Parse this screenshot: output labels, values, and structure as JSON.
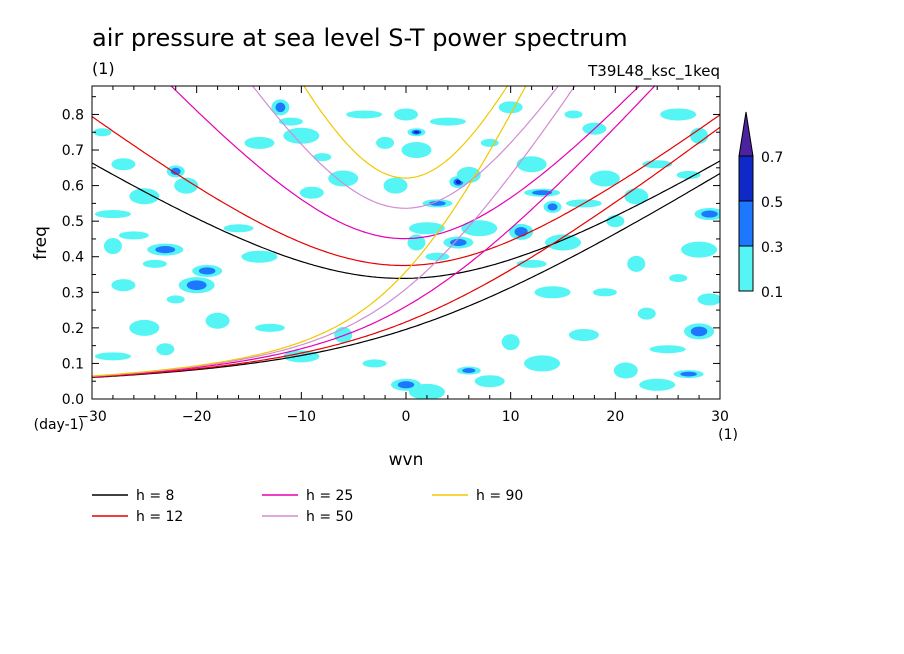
{
  "chart_data": {
    "type": "contour",
    "title": "air pressure at sea level S-T power spectrum",
    "units_label": "(1)",
    "experiment_label": "T39L48_ksc_1keq",
    "xlabel": "wvn",
    "ylabel": "freq",
    "x_unit_label": "(1)",
    "y_unit_label": "(day-1)",
    "xlim": [
      -30,
      30
    ],
    "ylim": [
      0,
      0.88
    ],
    "xticks": [
      -30,
      -20,
      -10,
      0,
      10,
      20,
      30
    ],
    "yticks": [
      0.0,
      0.1,
      0.2,
      0.3,
      0.4,
      0.5,
      0.6,
      0.7,
      0.8
    ],
    "colorbar": {
      "levels": [
        "0.1",
        "0.3",
        "0.5",
        "0.7"
      ],
      "colors": [
        "#55f5f5",
        "#1e78ff",
        "#0f28c8",
        "#4b23a0"
      ]
    },
    "contour_patches": [
      {
        "x": -29,
        "y": 0.75,
        "level": 0
      },
      {
        "x": -27,
        "y": 0.66,
        "level": 0
      },
      {
        "x": -25,
        "y": 0.57,
        "level": 0
      },
      {
        "x": -28,
        "y": 0.52,
        "level": 0
      },
      {
        "x": -22,
        "y": 0.64,
        "level": 1
      },
      {
        "x": -21,
        "y": 0.6,
        "level": 0
      },
      {
        "x": -26,
        "y": 0.46,
        "level": 0
      },
      {
        "x": -23,
        "y": 0.42,
        "level": 1
      },
      {
        "x": -28,
        "y": 0.43,
        "level": 0
      },
      {
        "x": -24,
        "y": 0.38,
        "level": 0
      },
      {
        "x": -19,
        "y": 0.36,
        "level": 1
      },
      {
        "x": -20,
        "y": 0.32,
        "level": 1
      },
      {
        "x": -22,
        "y": 0.28,
        "level": 0
      },
      {
        "x": -27,
        "y": 0.32,
        "level": 0
      },
      {
        "x": -25,
        "y": 0.2,
        "level": 0
      },
      {
        "x": -28,
        "y": 0.12,
        "level": 0
      },
      {
        "x": -23,
        "y": 0.14,
        "level": 0
      },
      {
        "x": -18,
        "y": 0.22,
        "level": 0
      },
      {
        "x": -16,
        "y": 0.48,
        "level": 0
      },
      {
        "x": -14,
        "y": 0.4,
        "level": 0
      },
      {
        "x": -12,
        "y": 0.82,
        "level": 1
      },
      {
        "x": -11,
        "y": 0.78,
        "level": 0
      },
      {
        "x": -14,
        "y": 0.72,
        "level": 0
      },
      {
        "x": -10,
        "y": 0.74,
        "level": 0
      },
      {
        "x": -8,
        "y": 0.68,
        "level": 0
      },
      {
        "x": -9,
        "y": 0.58,
        "level": 0
      },
      {
        "x": -6,
        "y": 0.62,
        "level": 0
      },
      {
        "x": -4,
        "y": 0.8,
        "level": 0
      },
      {
        "x": -2,
        "y": 0.72,
        "level": 0
      },
      {
        "x": -1,
        "y": 0.6,
        "level": 0
      },
      {
        "x": -13,
        "y": 0.2,
        "level": 0
      },
      {
        "x": -10,
        "y": 0.12,
        "level": 0
      },
      {
        "x": -6,
        "y": 0.18,
        "level": 0
      },
      {
        "x": -3,
        "y": 0.1,
        "level": 0
      },
      {
        "x": 0,
        "y": 0.04,
        "level": 1
      },
      {
        "x": 2,
        "y": 0.02,
        "level": 0
      },
      {
        "x": 1,
        "y": 0.75,
        "level": 2
      },
      {
        "x": 0,
        "y": 0.8,
        "level": 0
      },
      {
        "x": 1,
        "y": 0.7,
        "level": 0
      },
      {
        "x": 4,
        "y": 0.78,
        "level": 0
      },
      {
        "x": 5,
        "y": 0.61,
        "level": 2
      },
      {
        "x": 6,
        "y": 0.63,
        "level": 0
      },
      {
        "x": 3,
        "y": 0.55,
        "level": 1
      },
      {
        "x": 2,
        "y": 0.48,
        "level": 0
      },
      {
        "x": 1,
        "y": 0.44,
        "level": 0
      },
      {
        "x": 3,
        "y": 0.4,
        "level": 0
      },
      {
        "x": 5,
        "y": 0.44,
        "level": 1
      },
      {
        "x": 7,
        "y": 0.48,
        "level": 0
      },
      {
        "x": 8,
        "y": 0.72,
        "level": 0
      },
      {
        "x": 10,
        "y": 0.82,
        "level": 0
      },
      {
        "x": 12,
        "y": 0.66,
        "level": 0
      },
      {
        "x": 13,
        "y": 0.58,
        "level": 1
      },
      {
        "x": 14,
        "y": 0.54,
        "level": 1
      },
      {
        "x": 11,
        "y": 0.47,
        "level": 1
      },
      {
        "x": 12,
        "y": 0.38,
        "level": 0
      },
      {
        "x": 14,
        "y": 0.3,
        "level": 0
      },
      {
        "x": 10,
        "y": 0.16,
        "level": 0
      },
      {
        "x": 6,
        "y": 0.08,
        "level": 1
      },
      {
        "x": 8,
        "y": 0.05,
        "level": 0
      },
      {
        "x": 13,
        "y": 0.1,
        "level": 0
      },
      {
        "x": 16,
        "y": 0.8,
        "level": 0
      },
      {
        "x": 18,
        "y": 0.76,
        "level": 0
      },
      {
        "x": 19,
        "y": 0.62,
        "level": 0
      },
      {
        "x": 17,
        "y": 0.55,
        "level": 0
      },
      {
        "x": 20,
        "y": 0.5,
        "level": 0
      },
      {
        "x": 22,
        "y": 0.57,
        "level": 0
      },
      {
        "x": 24,
        "y": 0.66,
        "level": 0
      },
      {
        "x": 26,
        "y": 0.8,
        "level": 0
      },
      {
        "x": 28,
        "y": 0.74,
        "level": 0
      },
      {
        "x": 27,
        "y": 0.63,
        "level": 0
      },
      {
        "x": 29,
        "y": 0.52,
        "level": 1
      },
      {
        "x": 28,
        "y": 0.42,
        "level": 0
      },
      {
        "x": 26,
        "y": 0.34,
        "level": 0
      },
      {
        "x": 29,
        "y": 0.28,
        "level": 0
      },
      {
        "x": 28,
        "y": 0.19,
        "level": 1
      },
      {
        "x": 25,
        "y": 0.14,
        "level": 0
      },
      {
        "x": 23,
        "y": 0.24,
        "level": 0
      },
      {
        "x": 21,
        "y": 0.08,
        "level": 0
      },
      {
        "x": 27,
        "y": 0.07,
        "level": 1
      },
      {
        "x": 24,
        "y": 0.04,
        "level": 0
      },
      {
        "x": 22,
        "y": 0.38,
        "level": 0
      },
      {
        "x": 19,
        "y": 0.3,
        "level": 0
      },
      {
        "x": 17,
        "y": 0.18,
        "level": 0
      },
      {
        "x": 15,
        "y": 0.44,
        "level": 0
      }
    ],
    "series": [
      {
        "name": "h =  8",
        "h": 8,
        "color": "#000000"
      },
      {
        "name": "h = 12",
        "h": 12,
        "color": "#e60000"
      },
      {
        "name": "h = 25",
        "h": 25,
        "color": "#e600b4"
      },
      {
        "name": "h = 50",
        "h": 50,
        "color": "#d28cd2"
      },
      {
        "name": "h = 90",
        "h": 90,
        "color": "#f0c800"
      }
    ],
    "legend": [
      {
        "label": "h =  8",
        "color": "#000000"
      },
      {
        "label": "h = 12",
        "color": "#e60000"
      },
      {
        "label": "h = 25",
        "color": "#e600b4"
      },
      {
        "label": "h = 50",
        "color": "#d28cd2"
      },
      {
        "label": "h = 90",
        "color": "#f0c800"
      }
    ],
    "grid": false,
    "legend_placement": "bottom"
  }
}
